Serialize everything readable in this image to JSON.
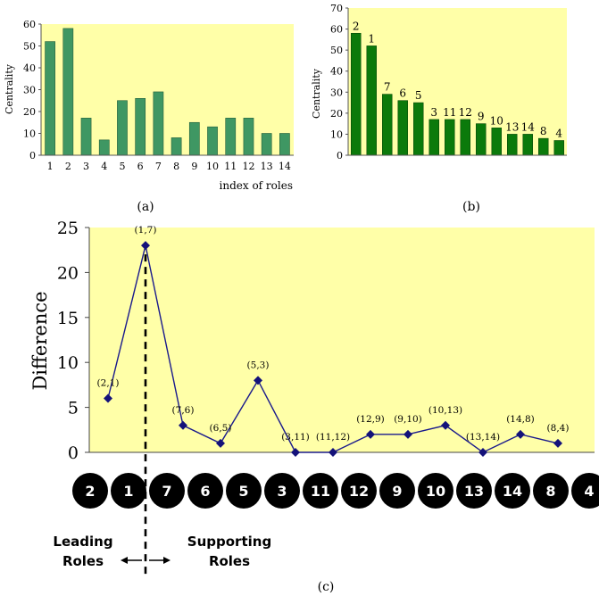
{
  "colors": {
    "plot_bg": "#ffffa8",
    "bar_a": "#3f9763",
    "bar_b": "#0b7a0b",
    "line": "#1a1a8c",
    "marker": "#14127a",
    "circle": "#000000"
  },
  "chart_data": [
    {
      "type": "bar",
      "panel": "(a)",
      "ylabel": "Centrality",
      "xlabel": "index of roles",
      "ylim": [
        0,
        60
      ],
      "yticks": [
        0,
        10,
        20,
        30,
        40,
        50,
        60
      ],
      "grid": false,
      "categories": [
        "1",
        "2",
        "3",
        "4",
        "5",
        "6",
        "7",
        "8",
        "9",
        "10",
        "11",
        "12",
        "13",
        "14"
      ],
      "values": [
        52,
        58,
        17,
        7,
        25,
        26,
        29,
        8,
        15,
        13,
        17,
        17,
        10,
        10
      ]
    },
    {
      "type": "bar",
      "panel": "(b)",
      "ylabel": "Centrality",
      "ylim": [
        0,
        70
      ],
      "yticks": [
        0,
        10,
        20,
        30,
        40,
        50,
        60,
        70
      ],
      "grid": false,
      "categories": [
        "2",
        "1",
        "7",
        "6",
        "5",
        "3",
        "11",
        "12",
        "9",
        "10",
        "13",
        "14",
        "8",
        "4"
      ],
      "values": [
        58,
        52,
        29,
        26,
        25,
        17,
        17,
        17,
        15,
        13,
        10,
        10,
        8,
        7
      ]
    },
    {
      "type": "line",
      "panel": "(c)",
      "ylabel": "Difference",
      "ylim": [
        0,
        25
      ],
      "yticks": [
        0,
        5,
        10,
        15,
        20,
        25
      ],
      "grid": false,
      "points": [
        {
          "label": "(2,1)",
          "y": 6
        },
        {
          "label": "(1,7)",
          "y": 23
        },
        {
          "label": "(7,6)",
          "y": 3
        },
        {
          "label": "(6,5)",
          "y": 1
        },
        {
          "label": "(5,3)",
          "y": 8
        },
        {
          "label": "(3,11)",
          "y": 0
        },
        {
          "label": "(11,12)",
          "y": 0
        },
        {
          "label": "(12,9)",
          "y": 2
        },
        {
          "label": "(9,10)",
          "y": 2
        },
        {
          "label": "(10,13)",
          "y": 3
        },
        {
          "label": "(13,14)",
          "y": 0
        },
        {
          "label": "(14,8)",
          "y": 2
        },
        {
          "label": "(8,4)",
          "y": 1
        }
      ],
      "role_order": [
        "2",
        "1",
        "7",
        "6",
        "5",
        "3",
        "11",
        "12",
        "9",
        "10",
        "13",
        "14",
        "8",
        "4"
      ],
      "split_after": 1,
      "leading_label": [
        "Leading",
        "Roles"
      ],
      "supporting_label": [
        "Supporting",
        "Roles"
      ]
    }
  ]
}
